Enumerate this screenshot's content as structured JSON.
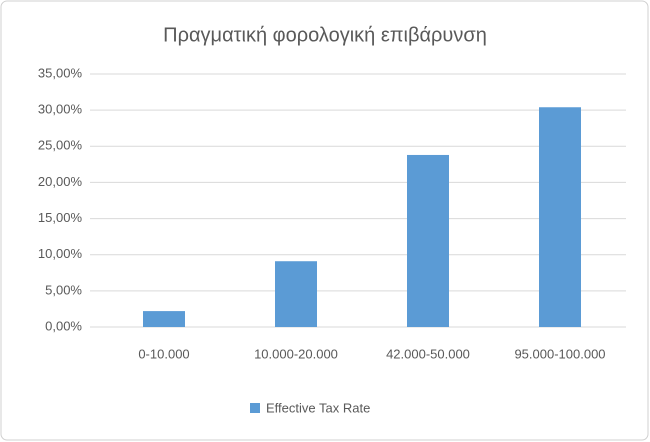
{
  "chart_data": {
    "type": "bar",
    "title": "Πραγματική φορολογική επιβάρυνση",
    "categories": [
      "0-10.000",
      "10.000-20.000",
      "42.000-50.000",
      "95.000-100.000"
    ],
    "series": [
      {
        "name": "Effective Tax Rate",
        "color": "#5b9bd5",
        "values": [
          2.2,
          9.1,
          23.8,
          30.4
        ]
      }
    ],
    "ylim": [
      0,
      35
    ],
    "yticks": [
      {
        "value": 0,
        "label": "0,00%"
      },
      {
        "value": 5,
        "label": "5,00%"
      },
      {
        "value": 10,
        "label": "10,00%"
      },
      {
        "value": 15,
        "label": "15,00%"
      },
      {
        "value": 20,
        "label": "20,00%"
      },
      {
        "value": 25,
        "label": "25,00%"
      },
      {
        "value": 30,
        "label": "30,00%"
      },
      {
        "value": 35,
        "label": "35,00%"
      }
    ],
    "grid": true,
    "legend": "bottom"
  }
}
